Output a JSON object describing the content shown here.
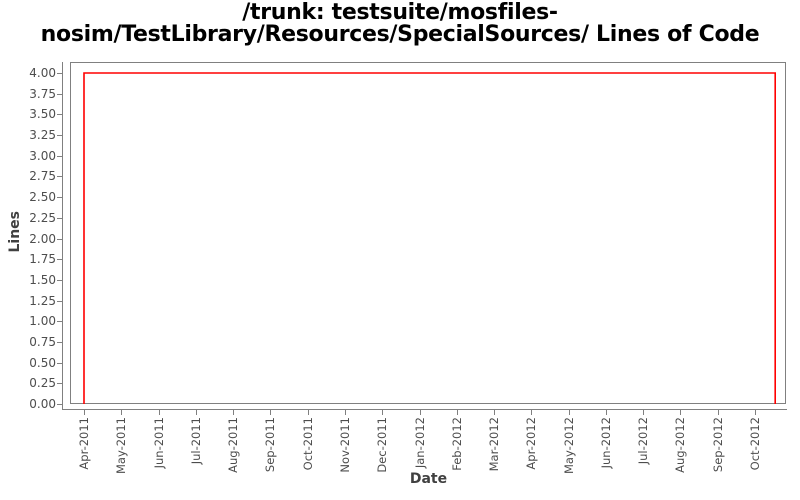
{
  "chart_data": {
    "type": "line",
    "title": "/trunk: testsuite/mosfiles-nosim/TestLibrary/Resources/SpecialSources/ Lines of Code",
    "title_lines": [
      "/trunk: testsuite/mosfiles-",
      "nosim/TestLibrary/Resources/SpecialSources/ Lines of Code"
    ],
    "xlabel": "Date",
    "ylabel": "Lines",
    "x_tick_labels": [
      "Apr-2011",
      "May-2011",
      "Jun-2011",
      "Jul-2011",
      "Aug-2011",
      "Sep-2011",
      "Oct-2011",
      "Nov-2011",
      "Dec-2011",
      "Jan-2012",
      "Feb-2012",
      "Mar-2012",
      "Apr-2012",
      "May-2012",
      "Jun-2012",
      "Jul-2012",
      "Aug-2012",
      "Sep-2012",
      "Oct-2012"
    ],
    "y_tick_labels": [
      "0.00",
      "0.25",
      "0.50",
      "0.75",
      "1.00",
      "1.25",
      "1.50",
      "1.75",
      "2.00",
      "2.25",
      "2.50",
      "2.75",
      "3.00",
      "3.25",
      "3.50",
      "3.75",
      "4.00"
    ],
    "ylim": [
      0,
      4
    ],
    "grid": false,
    "legend": "none",
    "series": [
      {
        "name": "Lines of Code",
        "color": "#ff0000",
        "points": [
          {
            "month_index": 0,
            "value": 0
          },
          {
            "month_index": 0,
            "value": 4
          },
          {
            "month_index": 18.54,
            "value": 4
          },
          {
            "month_index": 18.54,
            "value": 0
          }
        ]
      }
    ],
    "colors": {
      "line": "#ff0000",
      "axis": "#808080",
      "tick_label": "#4d4d4d",
      "axis_title": "#404040",
      "title": "#000000",
      "background": "#ffffff"
    }
  }
}
